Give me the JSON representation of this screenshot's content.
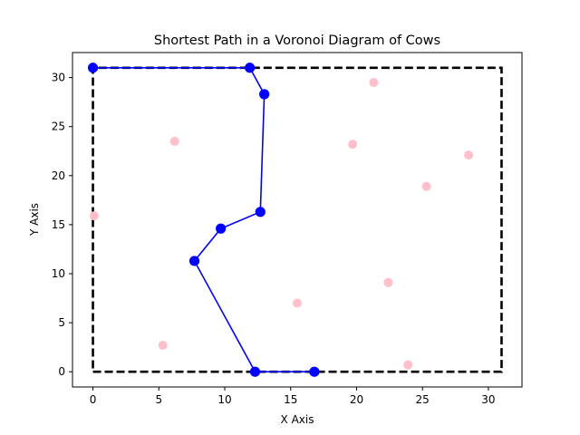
{
  "chart_data": {
    "type": "scatter",
    "title": "Shortest Path in a Voronoi Diagram of Cows",
    "xlabel": "X Axis",
    "ylabel": "Y Axis",
    "xlim": [
      -1.55,
      32.55
    ],
    "ylim": [
      -1.55,
      32.55
    ],
    "xticks": [
      0,
      5,
      10,
      15,
      20,
      25,
      30
    ],
    "yticks": [
      0,
      5,
      10,
      15,
      20,
      25,
      30
    ],
    "grid": false,
    "boundary": {
      "name": "boundary",
      "color": "#000000",
      "style": "dashed",
      "x": [
        0,
        31,
        31,
        0,
        0
      ],
      "y": [
        0,
        0,
        31,
        31,
        0
      ]
    },
    "cows": {
      "name": "cows",
      "color": "#ffc0cb",
      "points": [
        [
          0.1,
          15.9
        ],
        [
          5.3,
          2.7
        ],
        [
          6.2,
          23.5
        ],
        [
          15.5,
          7.0
        ],
        [
          19.7,
          23.2
        ],
        [
          21.3,
          29.5
        ],
        [
          22.4,
          9.1
        ],
        [
          23.9,
          0.7
        ],
        [
          25.3,
          18.9
        ],
        [
          28.5,
          22.1
        ]
      ]
    },
    "path": {
      "name": "shortest path",
      "color": "#0000ff",
      "points": [
        [
          16.8,
          0.0
        ],
        [
          12.3,
          0.0
        ],
        [
          7.7,
          11.3
        ],
        [
          9.7,
          14.6
        ],
        [
          12.7,
          16.3
        ],
        [
          13.0,
          28.3
        ],
        [
          11.9,
          31.0
        ],
        [
          0.0,
          31.0
        ]
      ]
    }
  }
}
